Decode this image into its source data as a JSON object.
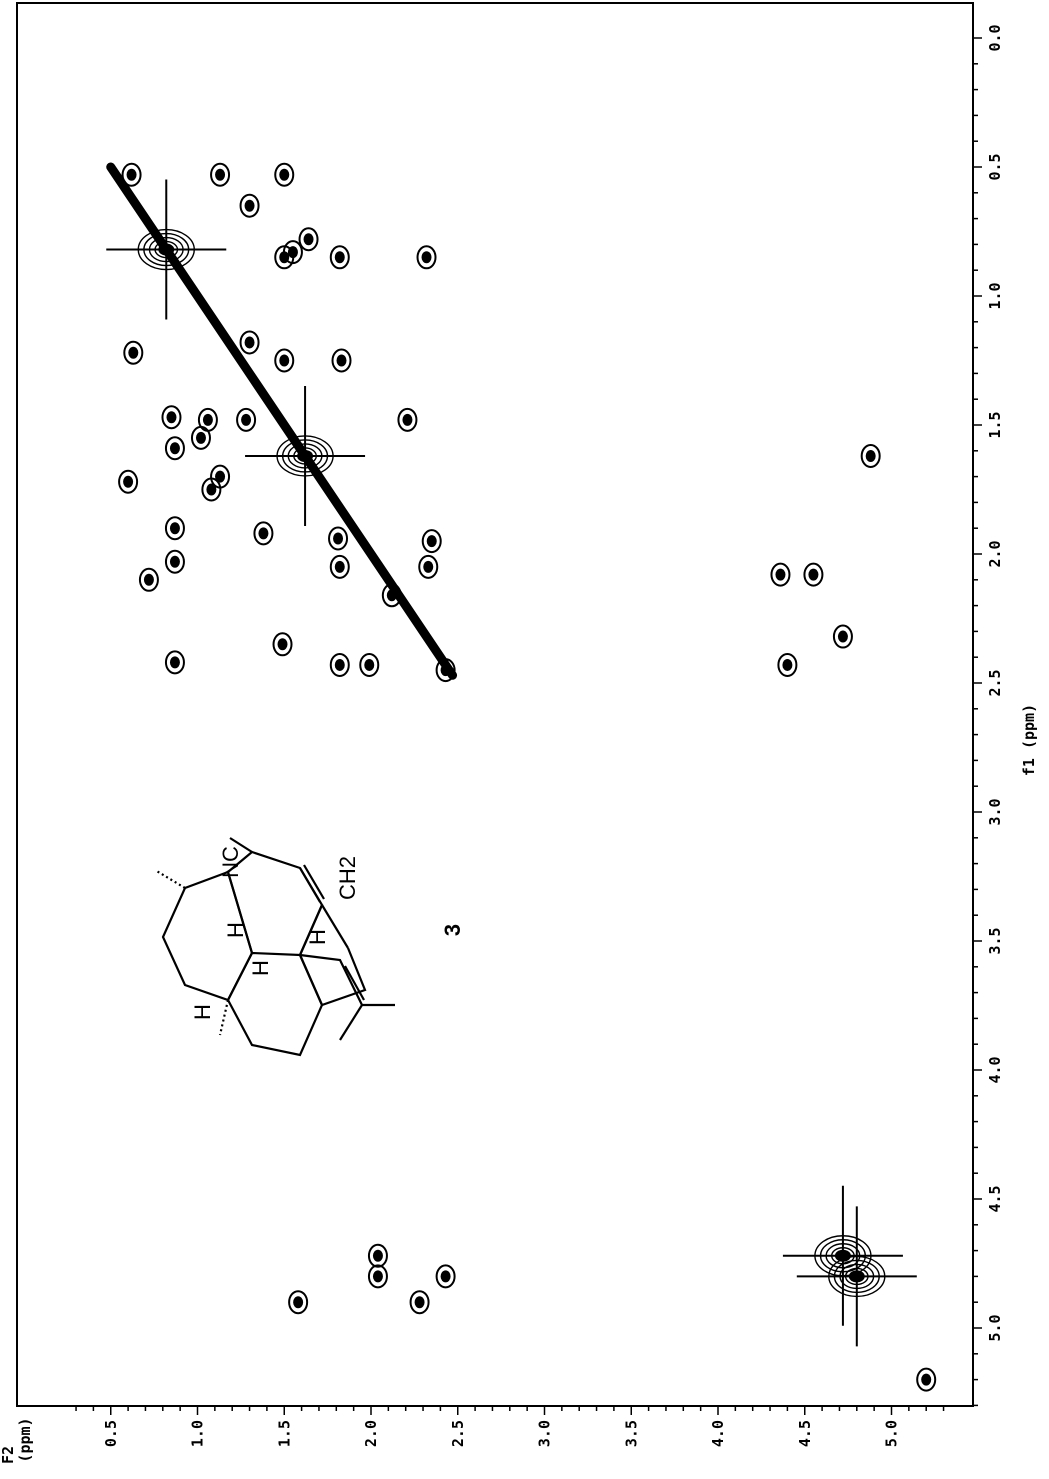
{
  "chart_data": {
    "type": "heatmap",
    "subtype": "2D NMR COSY contour plot (rotated 90°)",
    "f1_axis": {
      "label": "f1 (ppm)",
      "range": [
        0.0,
        5.3
      ],
      "ticks": [
        "0.0",
        "0.5",
        "1.0",
        "1.5",
        "2.0",
        "2.5",
        "3.0",
        "3.5",
        "4.0",
        "4.5",
        "5.0"
      ],
      "tick_values": [
        0.0,
        0.5,
        1.0,
        1.5,
        2.0,
        2.5,
        3.0,
        3.5,
        4.0,
        4.5,
        5.0
      ]
    },
    "f2_axis": {
      "label_line1": "F2",
      "label_line2": "(ppm)",
      "range": [
        0.25,
        5.3
      ],
      "ticks": [
        "0.5",
        "1.0",
        "1.5",
        "2.0",
        "2.5",
        "3.0",
        "3.5",
        "4.0",
        "4.5",
        "5.0"
      ],
      "tick_values": [
        0.5,
        1.0,
        1.5,
        2.0,
        2.5,
        3.0,
        3.5,
        4.0,
        4.5,
        5.0
      ]
    },
    "diagonal": [
      0.5,
      2.47
    ],
    "major_peaks": [
      {
        "f1": 0.82,
        "f2": 0.82,
        "size": "large"
      },
      {
        "f1": 1.62,
        "f2": 1.62,
        "size": "large"
      },
      {
        "f1": 4.72,
        "f2": 4.72,
        "size": "large"
      },
      {
        "f1": 4.8,
        "f2": 4.8,
        "size": "large"
      }
    ],
    "cross_peaks": [
      {
        "f1": 0.53,
        "f2": 0.62
      },
      {
        "f1": 0.53,
        "f2": 1.13
      },
      {
        "f1": 0.53,
        "f2": 1.5
      },
      {
        "f1": 0.65,
        "f2": 1.3
      },
      {
        "f1": 0.78,
        "f2": 1.64
      },
      {
        "f1": 0.85,
        "f2": 1.5
      },
      {
        "f1": 0.85,
        "f2": 1.82
      },
      {
        "f1": 0.85,
        "f2": 2.32
      },
      {
        "f1": 0.83,
        "f2": 1.55
      },
      {
        "f1": 1.18,
        "f2": 1.3
      },
      {
        "f1": 1.22,
        "f2": 0.63
      },
      {
        "f1": 1.25,
        "f2": 1.5
      },
      {
        "f1": 1.25,
        "f2": 1.83
      },
      {
        "f1": 1.47,
        "f2": 0.85
      },
      {
        "f1": 1.48,
        "f2": 1.06
      },
      {
        "f1": 1.48,
        "f2": 1.28
      },
      {
        "f1": 1.48,
        "f2": 2.21
      },
      {
        "f1": 1.55,
        "f2": 1.02
      },
      {
        "f1": 1.59,
        "f2": 0.87
      },
      {
        "f1": 1.7,
        "f2": 1.13
      },
      {
        "f1": 1.72,
        "f2": 0.6
      },
      {
        "f1": 1.75,
        "f2": 1.08
      },
      {
        "f1": 1.9,
        "f2": 0.87
      },
      {
        "f1": 1.92,
        "f2": 1.38
      },
      {
        "f1": 1.94,
        "f2": 1.81
      },
      {
        "f1": 1.95,
        "f2": 2.35
      },
      {
        "f1": 2.03,
        "f2": 0.87
      },
      {
        "f1": 2.05,
        "f2": 1.82
      },
      {
        "f1": 2.05,
        "f2": 2.33
      },
      {
        "f1": 2.1,
        "f2": 0.72
      },
      {
        "f1": 2.16,
        "f2": 2.12
      },
      {
        "f1": 2.35,
        "f2": 1.49
      },
      {
        "f1": 2.42,
        "f2": 0.87
      },
      {
        "f1": 2.43,
        "f2": 1.82
      },
      {
        "f1": 2.43,
        "f2": 1.99
      },
      {
        "f1": 2.45,
        "f2": 2.43
      },
      {
        "f1": 1.62,
        "f2": 4.88
      },
      {
        "f1": 2.08,
        "f2": 4.36
      },
      {
        "f1": 2.08,
        "f2": 4.55
      },
      {
        "f1": 2.32,
        "f2": 4.72
      },
      {
        "f1": 2.43,
        "f2": 4.4
      },
      {
        "f1": 4.72,
        "f2": 2.04
      },
      {
        "f1": 4.8,
        "f2": 2.04
      },
      {
        "f1": 4.9,
        "f2": 2.28
      },
      {
        "f1": 4.8,
        "f2": 2.43
      },
      {
        "f1": 4.9,
        "f2": 1.58
      },
      {
        "f1": 5.2,
        "f2": 5.2
      }
    ]
  },
  "figure": {
    "compound_number": "3",
    "structure_labels": {
      "nc": "NC",
      "ch2": "CH2",
      "h": "H"
    }
  }
}
